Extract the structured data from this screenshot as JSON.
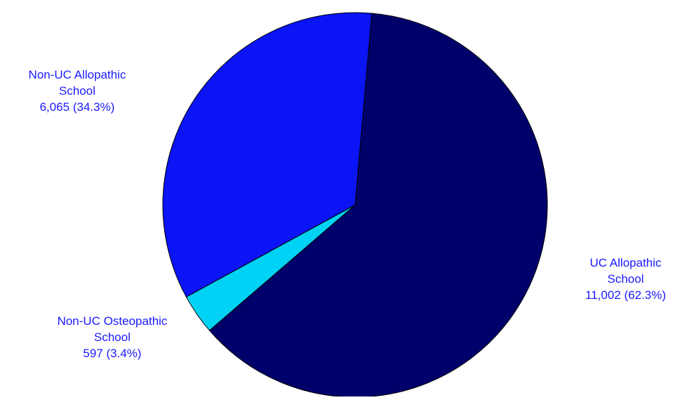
{
  "chart_data": {
    "type": "pie",
    "title": "",
    "slices": [
      {
        "name_line1": "UC Allopathic",
        "name_line2": "School",
        "value": 11002,
        "value_text": "11,002 (62.3%)",
        "percent": 62.3,
        "color": "#00006b"
      },
      {
        "name_line1": "Non-UC Osteopathic",
        "name_line2": "School",
        "value": 597,
        "value_text": "597 (3.4%)",
        "percent": 3.4,
        "color": "#00d2f5"
      },
      {
        "name_line1": "Non-UC Allopathic",
        "name_line2": "School",
        "value": 6065,
        "value_text": "6,065 (34.3%)",
        "percent": 34.3,
        "color": "#0a14f5"
      }
    ],
    "label_color": "#1a1aff",
    "legend": "none"
  }
}
